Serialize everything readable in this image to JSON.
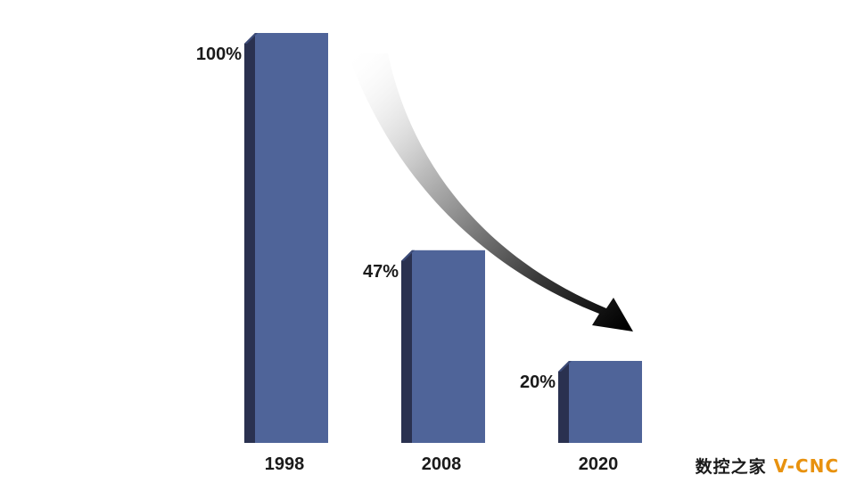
{
  "chart_data": {
    "type": "bar",
    "categories": [
      "1998",
      "2008",
      "2020"
    ],
    "values": [
      100,
      47,
      20
    ],
    "value_labels": [
      "100%",
      "47%",
      "20%"
    ],
    "ylim": [
      0,
      100
    ],
    "grid": false,
    "trend_arrow": true,
    "colors": {
      "bar_front": "#4f6499",
      "bar_side": "#2a3150",
      "bar_top": "#3c4b78",
      "label": "#1a1a1a"
    }
  },
  "watermark": {
    "cn": "数控之家",
    "en": "V-CNC",
    "en_color": "#e8920f"
  }
}
